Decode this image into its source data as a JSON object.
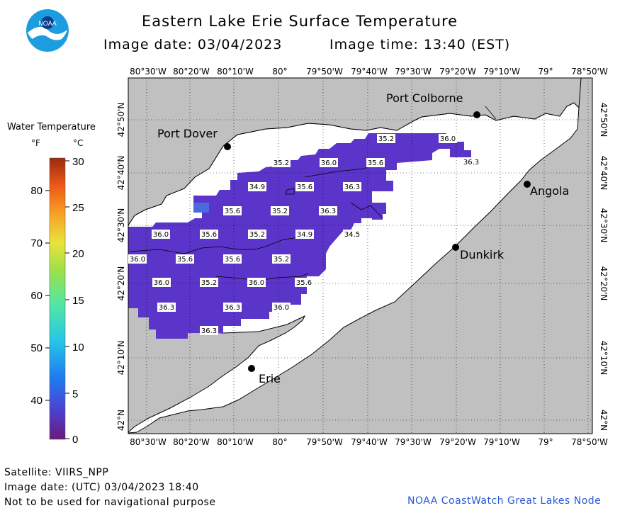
{
  "header": {
    "title": "Eastern Lake Erie Surface Temperature",
    "date_label": "Image date: 03/04/2023",
    "time_label": "Image time: 13:40 (EST)",
    "logo_text": "NOAA"
  },
  "legend": {
    "title": "Water Temperature",
    "unit_f": "°F",
    "unit_c": "°C",
    "f_ticks": [
      "80",
      "70",
      "60",
      "50",
      "40"
    ],
    "c_ticks": [
      "30",
      "25",
      "20",
      "15",
      "10",
      "5",
      "0"
    ]
  },
  "axes": {
    "lon_labels": [
      "80°30'W",
      "80°20'W",
      "80°10'W",
      "80°",
      "79°50'W",
      "79°40'W",
      "79°30'W",
      "79°20'W",
      "79°10'W",
      "79°",
      "78°50'W"
    ],
    "lat_labels": [
      "42°50'N",
      "42°40'N",
      "42°30'N",
      "42°20'N",
      "42°10'N",
      "42°N"
    ]
  },
  "places": [
    {
      "name": "Port Colborne"
    },
    {
      "name": "Port Dover"
    },
    {
      "name": "Angola"
    },
    {
      "name": "Dunkirk"
    },
    {
      "name": "Erie"
    }
  ],
  "temperature_labels": [
    "35.2",
    "36.0",
    "36.3",
    "35.2",
    "36.0",
    "35.6",
    "34.9",
    "35.6",
    "36.3",
    "35.6",
    "35.2",
    "36.3",
    "36.0",
    "35.6",
    "35.2",
    "34.9",
    "34.5",
    "36.0",
    "35.6",
    "35.6",
    "35.2",
    "36.0",
    "35.2",
    "36.0",
    "35.6",
    "36.3",
    "36.3",
    "36.0",
    "36.3"
  ],
  "colors": {
    "land": "#c0c0c0",
    "lake": "#ffffff",
    "water_warm": "#6a31c8",
    "water_cool": "#5a3bd0",
    "footer_link": "#2a58d6"
  },
  "footer": {
    "satellite": "Satellite: VIIRS_NPP",
    "utc_date": "Image date: (UTC) 03/04/2023  18:40",
    "disclaimer": "Not to be used for navigational purpose",
    "credit": "NOAA CoastWatch Great Lakes Node"
  }
}
